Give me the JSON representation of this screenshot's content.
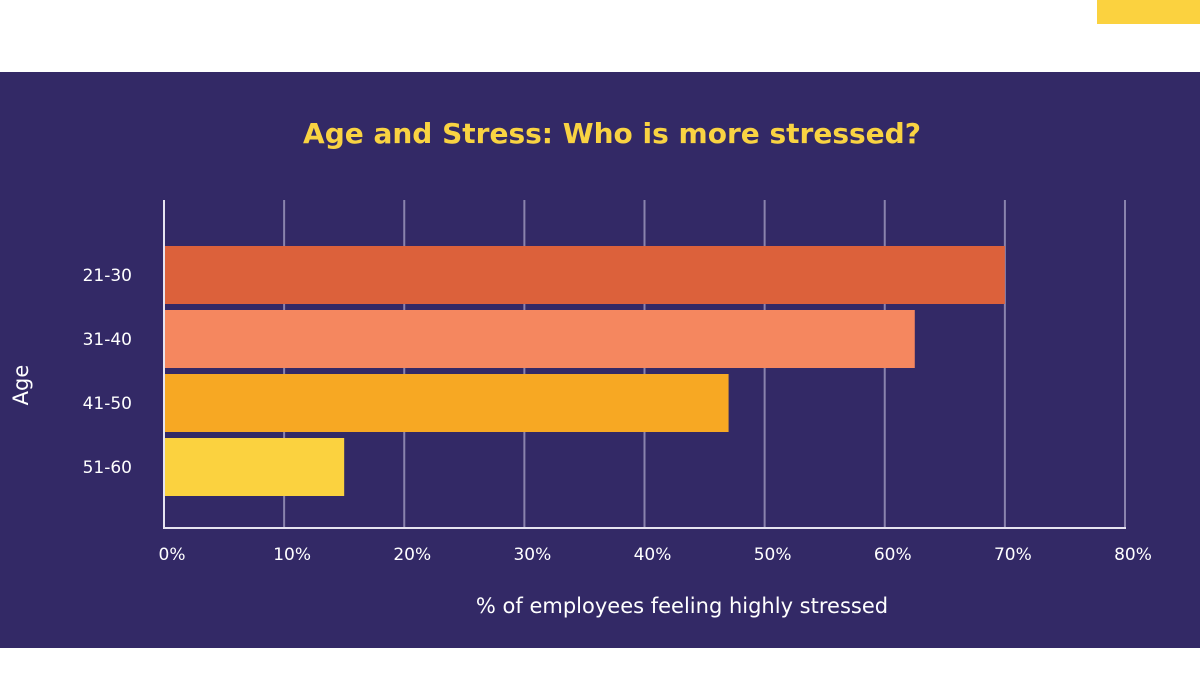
{
  "colors": {
    "background": "#332966",
    "title": "#f9d342",
    "accent": "#fbd23f",
    "text": "#ffffff",
    "grid": "#8a83ad"
  },
  "chart_data": {
    "type": "bar",
    "orientation": "horizontal",
    "title": "Age and Stress: Who is more stressed?",
    "xlabel": "% of employees feeling highly stressed",
    "ylabel": "Age",
    "categories": [
      "21-30",
      "31-40",
      "41-50",
      "51-60"
    ],
    "values": [
      70,
      62.5,
      47,
      15
    ],
    "bar_colors": [
      "#dc613b",
      "#f5875f",
      "#f7a823",
      "#fbd23f"
    ],
    "xlim": [
      0,
      80
    ],
    "xticks": [
      0,
      10,
      20,
      30,
      40,
      50,
      60,
      70,
      80
    ],
    "xtick_labels": [
      "0%",
      "10%",
      "20%",
      "30%",
      "40%",
      "50%",
      "60%",
      "70%",
      "80%"
    ],
    "grid": "vertical",
    "legend": "none"
  }
}
